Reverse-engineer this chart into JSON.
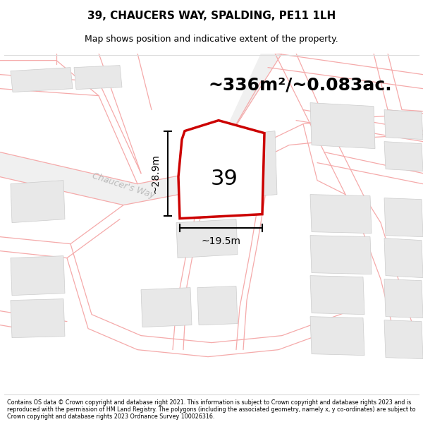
{
  "title": "39, CHAUCERS WAY, SPALDING, PE11 1LH",
  "subtitle": "Map shows position and indicative extent of the property.",
  "area_label": "~336m²/~0.083ac.",
  "property_number": "39",
  "dim_width": "~19.5m",
  "dim_height": "~28.9m",
  "footer": "Contains OS data © Crown copyright and database right 2021. This information is subject to Crown copyright and database rights 2023 and is reproduced with the permission of HM Land Registry. The polygons (including the associated geometry, namely x, y co-ordinates) are subject to Crown copyright and database rights 2023 Ordnance Survey 100026316.",
  "bg_color": "#ffffff",
  "road_line_color": "#f5aaaa",
  "road_edge_color": "#cccccc",
  "plot_fill": "#ffffff",
  "plot_edge": "#cc0000",
  "building_fill": "#e8e8e8",
  "building_edge": "#cccccc",
  "street_name": "Chaucer's Way",
  "street_color": "#bbbbbb",
  "title_fontsize": 11,
  "subtitle_fontsize": 9,
  "area_fontsize": 18,
  "number_fontsize": 22,
  "dim_fontsize": 10,
  "street_fontsize": 9,
  "footer_fontsize": 5.8
}
